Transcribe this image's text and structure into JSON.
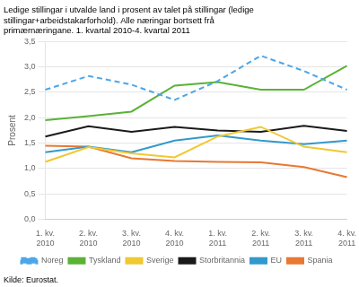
{
  "chart_data": {
    "type": "line",
    "title": "Ledige stillingar i utvalde land i prosent av talet på stillingar (ledige\nstillingar+arbeidstakarforhold). Alle næringar bortsett frå\nprimærnæringane. 1. kvartal 2010-4. kvartal 2011",
    "ylabel": "Prosent",
    "source": "Kilde: Eurostat.",
    "categories": [
      "1. kv.\n2010",
      "2. kv.\n2010",
      "3. kv.\n2010",
      "4. kv.\n2010",
      "1. kv.\n2011",
      "2. kv.\n2011",
      "3. kv.\n2011",
      "4. kv.\n2011"
    ],
    "series": [
      {
        "name": "Noreg",
        "color": "#4da6e8",
        "line_style": "dashed",
        "values": [
          2.55,
          2.82,
          2.65,
          2.35,
          2.72,
          3.22,
          2.92,
          2.55
        ]
      },
      {
        "name": "Tyskland",
        "color": "#5ab236",
        "line_style": "solid",
        "values": [
          1.95,
          2.03,
          2.12,
          2.63,
          2.7,
          2.55,
          2.55,
          3.02
        ]
      },
      {
        "name": "Sverige",
        "color": "#f0c832",
        "line_style": "solid",
        "values": [
          1.13,
          1.42,
          1.3,
          1.22,
          1.63,
          1.82,
          1.43,
          1.32
        ]
      },
      {
        "name": "Storbritannia",
        "color": "#1a1a1a",
        "line_style": "solid",
        "values": [
          1.63,
          1.83,
          1.72,
          1.82,
          1.75,
          1.72,
          1.84,
          1.74
        ]
      },
      {
        "name": "EU",
        "color": "#3399cc",
        "line_style": "solid",
        "values": [
          1.32,
          1.43,
          1.32,
          1.55,
          1.65,
          1.55,
          1.48,
          1.55
        ]
      },
      {
        "name": "Spania",
        "color": "#e87832",
        "line_style": "solid",
        "values": [
          1.45,
          1.43,
          1.2,
          1.15,
          1.13,
          1.12,
          1.03,
          0.83
        ]
      }
    ],
    "ylim": [
      0.0,
      3.5
    ],
    "yticks": [
      {
        "value": 0.0,
        "label": "0,0"
      },
      {
        "value": 0.5,
        "label": "0,5"
      },
      {
        "value": 1.0,
        "label": "1,0"
      },
      {
        "value": 1.5,
        "label": "1,5"
      },
      {
        "value": 2.0,
        "label": "2,0"
      },
      {
        "value": 2.5,
        "label": "2,5"
      },
      {
        "value": 3.0,
        "label": "3,0"
      },
      {
        "value": 3.5,
        "label": "3,5"
      }
    ],
    "grid": true,
    "legend": "bottom"
  }
}
